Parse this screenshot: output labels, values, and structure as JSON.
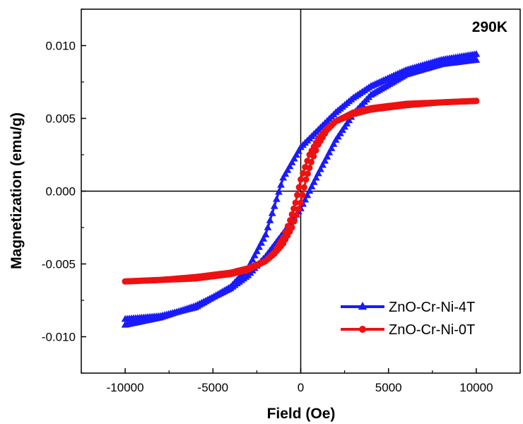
{
  "chart_data": {
    "type": "scatter",
    "title": "",
    "annotation": "290K",
    "xlabel": "Field (Oe)",
    "ylabel": "Magnetization (emu/g)",
    "xlim": [
      -12500,
      12500
    ],
    "ylim": [
      -0.0125,
      0.0125
    ],
    "xticks": [
      -10000,
      -5000,
      0,
      5000,
      10000
    ],
    "xtick_labels": [
      "-10000",
      "-5000",
      "0",
      "5000",
      "10000"
    ],
    "yticks": [
      -0.01,
      -0.005,
      0,
      0.005,
      0.01
    ],
    "ytick_labels": [
      "-0.010",
      "-0.005",
      "0.000",
      "0.005",
      "0.010"
    ],
    "grid": false,
    "legend_position": "bottom-right",
    "series": [
      {
        "name": "ZnO-Cr-Ni-4T",
        "color": "#1a1aff",
        "marker": "triangle",
        "branches": [
          {
            "x": [
              -10000,
              -8000,
              -6000,
              -4000,
              -3000,
              -2000,
              -1000,
              0,
              1000,
              2000,
              3000,
              4000,
              6000,
              8000,
              10000
            ],
            "y": [
              -0.0092,
              -0.0087,
              -0.0079,
              -0.0067,
              -0.0058,
              -0.0045,
              -0.0029,
              -0.0012,
              0.0012,
              0.0035,
              0.0053,
              0.0066,
              0.008,
              0.0087,
              0.009
            ]
          },
          {
            "x": [
              10000,
              8000,
              6000,
              4000,
              3000,
              2000,
              1000,
              0,
              -1000,
              -2000,
              -3000,
              -4000,
              -6000,
              -8000,
              -10000
            ],
            "y": [
              0.0094,
              0.009,
              0.0083,
              0.0072,
              0.0064,
              0.0054,
              0.0042,
              0.003,
              0.0009,
              -0.003,
              -0.0053,
              -0.0066,
              -0.008,
              -0.0086,
              -0.0088
            ]
          }
        ]
      },
      {
        "name": "ZnO-Cr-Ni-0T",
        "color": "#ee1111",
        "marker": "circle",
        "branches": [
          {
            "x": [
              -10000,
              -8000,
              -6000,
              -4000,
              -3000,
              -2000,
              -1500,
              -1000,
              -500,
              0,
              300,
              600,
              1000,
              1500,
              2000,
              3000,
              4000,
              6000,
              8000,
              10000
            ],
            "y": [
              -0.0062,
              -0.0061,
              -0.0059,
              -0.0056,
              -0.0053,
              -0.0048,
              -0.0043,
              -0.0036,
              -0.0025,
              -0.0008,
              0.0008,
              0.002,
              0.0032,
              0.0042,
              0.0048,
              0.0054,
              0.0057,
              0.006,
              0.0061,
              0.0062
            ]
          },
          {
            "x": [
              10000,
              8000,
              6000,
              4000,
              3000,
              2000,
              1500,
              1000,
              500,
              0,
              -300,
              -600,
              -1000,
              -1500,
              -2000,
              -3000,
              -4000,
              -6000,
              -8000,
              -10000
            ],
            "y": [
              0.0062,
              0.0061,
              0.0059,
              0.0056,
              0.0053,
              0.0048,
              0.0043,
              0.0036,
              0.0025,
              0.0008,
              -0.0008,
              -0.002,
              -0.0032,
              -0.0042,
              -0.0048,
              -0.0054,
              -0.0057,
              -0.006,
              -0.0061,
              -0.0062
            ]
          }
        ]
      }
    ]
  }
}
